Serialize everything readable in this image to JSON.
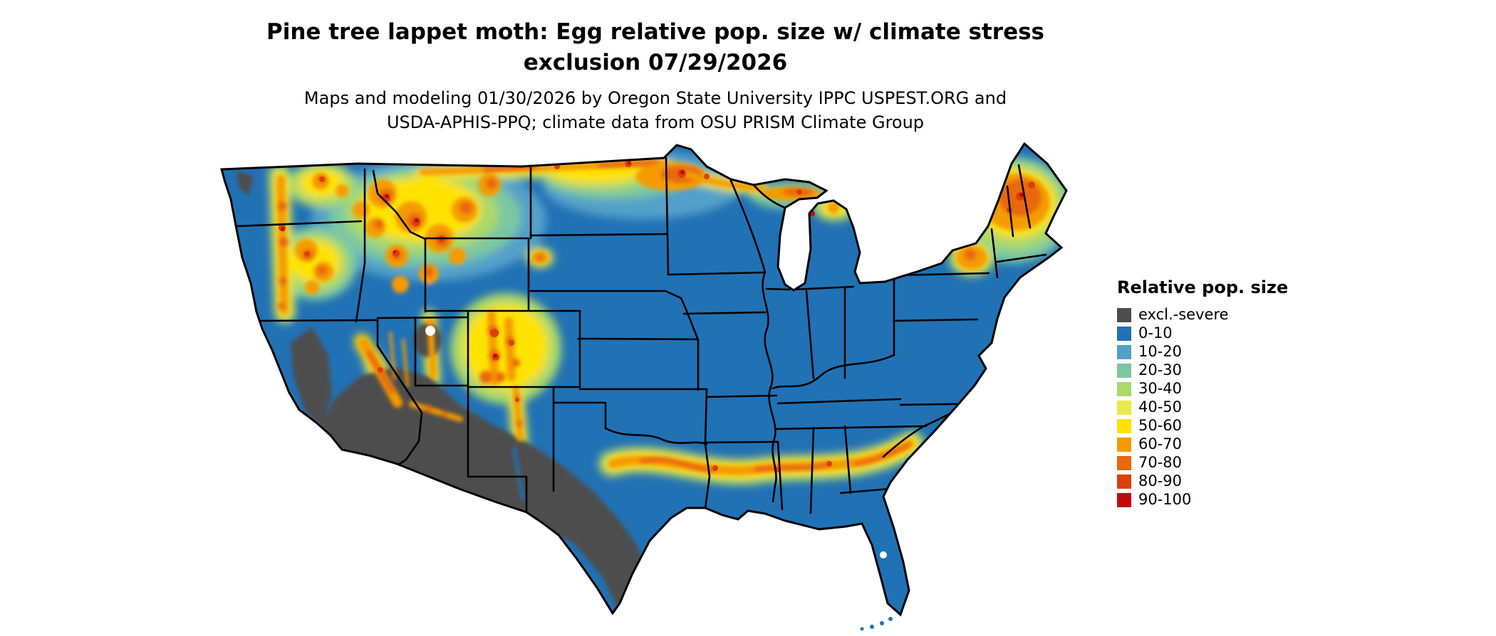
{
  "header": {
    "title_line1": "Pine tree lappet moth: Egg relative pop. size w/ climate stress",
    "title_line2": "exclusion 07/29/2026",
    "subtitle_line1": "Maps and modeling 01/30/2026 by Oregon State University IPPC USPEST.ORG and",
    "subtitle_line2": "USDA-APHIS-PPQ; climate data from OSU PRISM Climate Group"
  },
  "legend": {
    "title": "Relative pop. size",
    "items": [
      {
        "label": "excl.-severe",
        "color": "#4D4D4D"
      },
      {
        "label": "0-10",
        "color": "#2171B5"
      },
      {
        "label": "10-20",
        "color": "#53A0C9"
      },
      {
        "label": "20-30",
        "color": "#7CC7A2"
      },
      {
        "label": "30-40",
        "color": "#ABD96A"
      },
      {
        "label": "40-50",
        "color": "#E8E94C"
      },
      {
        "label": "50-60",
        "color": "#FFE200"
      },
      {
        "label": "60-70",
        "color": "#F59B00"
      },
      {
        "label": "70-80",
        "color": "#E9680C"
      },
      {
        "label": "80-90",
        "color": "#DA4206"
      },
      {
        "label": "90-100",
        "color": "#C20A0E"
      }
    ]
  }
}
